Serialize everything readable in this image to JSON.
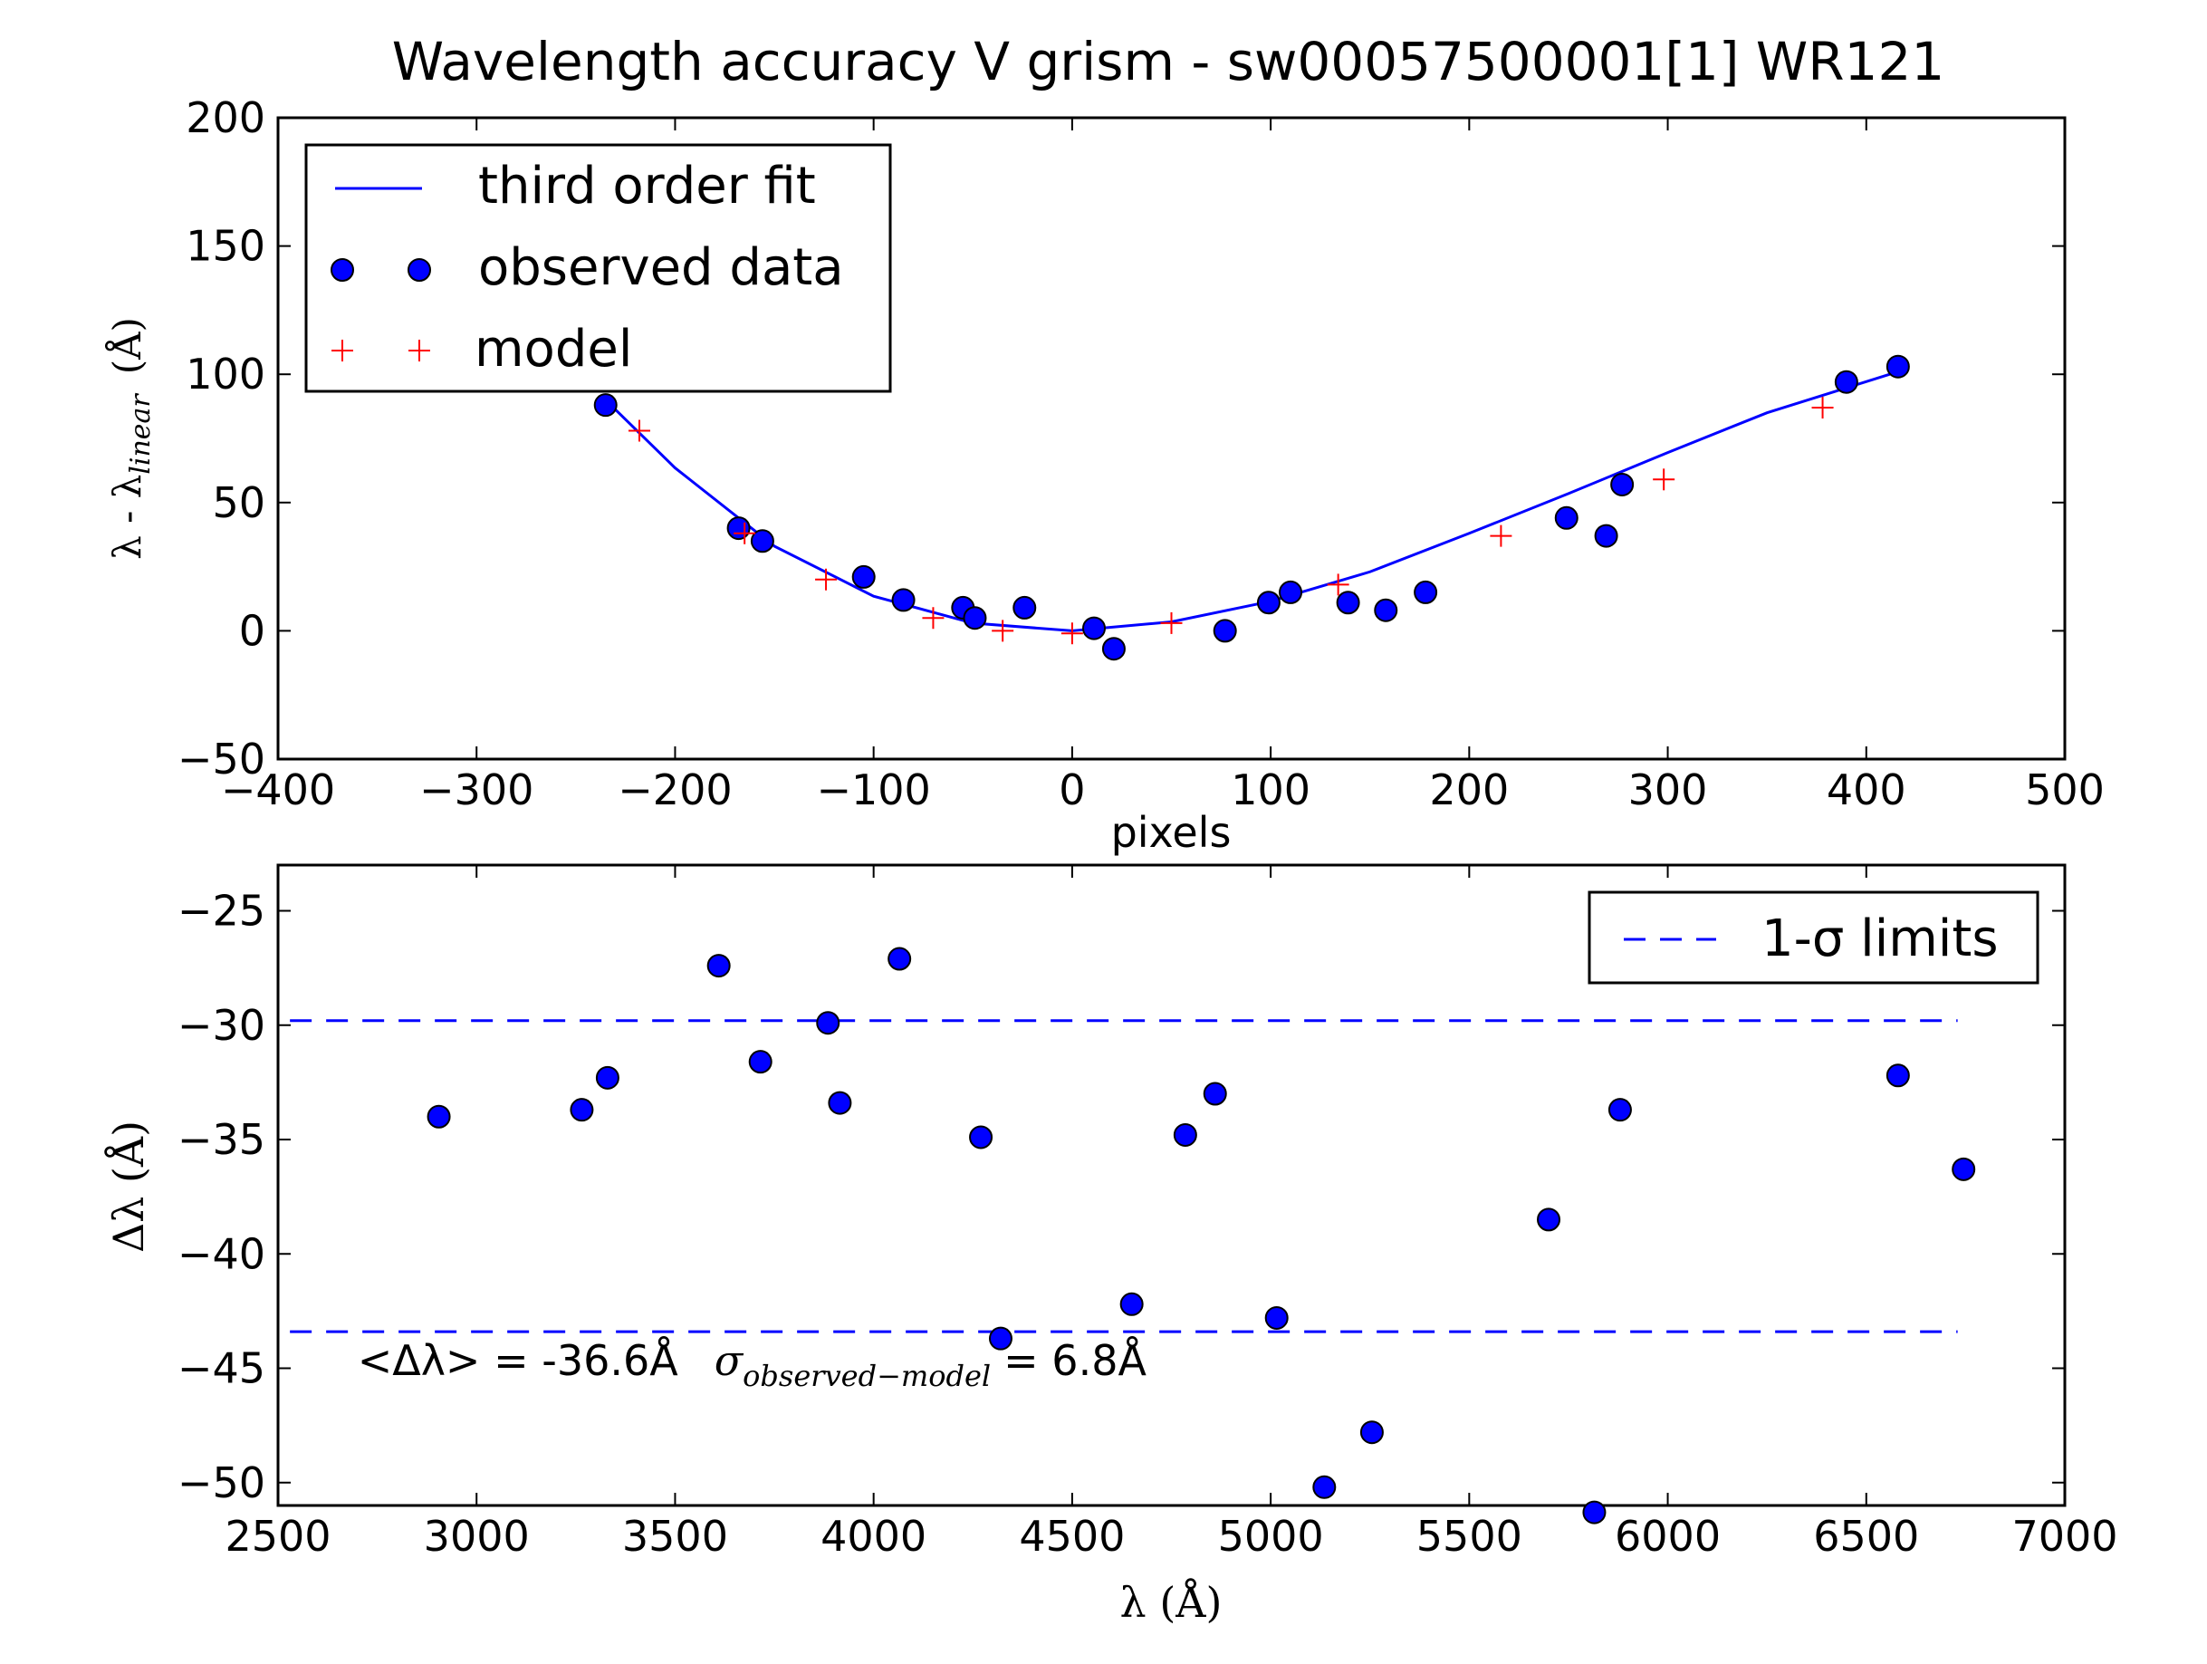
{
  "chart_data": [
    {
      "type": "scatter",
      "title": "Wavelength accuracy V grism - sw00057500001[1] WR121",
      "xlabel": "pixels",
      "ylabel": "λ - λ",
      "ylabel_sub": "linear",
      "ylabel_unit": "(Å)",
      "xlim": [
        -400,
        500
      ],
      "ylim": [
        -50,
        200
      ],
      "xticks": [
        -400,
        -300,
        -200,
        -100,
        0,
        100,
        200,
        300,
        400,
        500
      ],
      "yticks": [
        -50,
        0,
        50,
        100,
        150,
        200
      ],
      "xtick_labels": [
        "−400",
        "−300",
        "−200",
        "−100",
        "0",
        "100",
        "200",
        "300",
        "400",
        "500"
      ],
      "ytick_labels": [
        "−50",
        "0",
        "50",
        "100",
        "150",
        "200"
      ],
      "grid": false,
      "legend_position": "top-left",
      "legend": [
        "third order fit",
        "observed data",
        "model"
      ],
      "series": [
        {
          "name": "observed data",
          "kind": "marker-circle",
          "color": "#0000ff",
          "x": [
            -235,
            -168,
            -156,
            -105,
            -85,
            -55,
            -49,
            -24,
            11,
            21,
            77,
            99,
            110,
            139,
            158,
            178,
            249,
            269,
            277,
            390,
            416
          ],
          "y": [
            88,
            40,
            35,
            21,
            12,
            9,
            5,
            9,
            1,
            -7,
            0,
            11,
            15,
            11,
            8,
            15,
            44,
            37,
            57,
            97,
            103
          ]
        },
        {
          "name": "model",
          "kind": "marker-plus",
          "color": "#ff0000",
          "x": [
            -218,
            -165,
            -124,
            -70,
            -35,
            0,
            50,
            134,
            216,
            298,
            378
          ],
          "y": [
            78,
            38,
            20,
            5,
            0,
            -1,
            3,
            18,
            37,
            59,
            87
          ]
        },
        {
          "name": "third order fit",
          "kind": "line",
          "color": "#0000ff",
          "x": [
            -235,
            -200,
            -150,
            -100,
            -50,
            0,
            50,
            100,
            150,
            200,
            250,
            300,
            350,
            416
          ],
          "y": [
            90,
            63.5,
            33,
            13.5,
            3,
            0,
            3.5,
            11.5,
            23,
            38,
            53.5,
            69.5,
            85,
            101
          ]
        }
      ]
    },
    {
      "type": "scatter",
      "xlabel": "λ (Å)",
      "ylabel": "Δλ (Å)",
      "xlim": [
        2500,
        7000
      ],
      "ylim": [
        -51,
        -23
      ],
      "xticks": [
        2500,
        3000,
        3500,
        4000,
        4500,
        5000,
        5500,
        6000,
        6500,
        7000
      ],
      "yticks": [
        -25,
        -30,
        -35,
        -40,
        -45,
        -50
      ],
      "xtick_labels": [
        "2500",
        "3000",
        "3500",
        "4000",
        "4500",
        "5000",
        "5500",
        "6000",
        "6500",
        "7000"
      ],
      "ytick_labels": [
        "−25",
        "−30",
        "−35",
        "−40",
        "−45",
        "−50"
      ],
      "grid": false,
      "legend_position": "top-right",
      "legend": [
        "1-σ limits"
      ],
      "annotation": {
        "mean_text": "<Δλ> = -36.6Å",
        "sigma_symbol": "σ",
        "sigma_sub": "observed−model",
        "sigma_value": "= 6.8Å",
        "x": 2700,
        "y": -45.3
      },
      "series": [
        {
          "name": "observed data",
          "kind": "marker-circle",
          "color": "#0000ff",
          "x": [
            2905,
            3265,
            3330,
            3610,
            3715,
            3885,
            3915,
            4065,
            4270,
            4320,
            4650,
            4785,
            4860,
            5015,
            5135,
            5255,
            5700,
            5880,
            5815,
            6580,
            6745
          ],
          "y": [
            -34.0,
            -33.7,
            -32.3,
            -27.4,
            -31.6,
            -29.9,
            -33.4,
            -27.1,
            -34.9,
            -43.7,
            -42.2,
            -34.8,
            -33.0,
            -42.8,
            -50.2,
            -47.8,
            -38.5,
            -33.7,
            -51.3,
            -32.2,
            -36.3
          ]
        },
        {
          "name": "1-σ limits",
          "kind": "dashed-line",
          "color": "#0000ff",
          "x_range": [
            2530,
            6730
          ],
          "y_values": [
            -29.8,
            -43.4
          ]
        }
      ]
    }
  ]
}
